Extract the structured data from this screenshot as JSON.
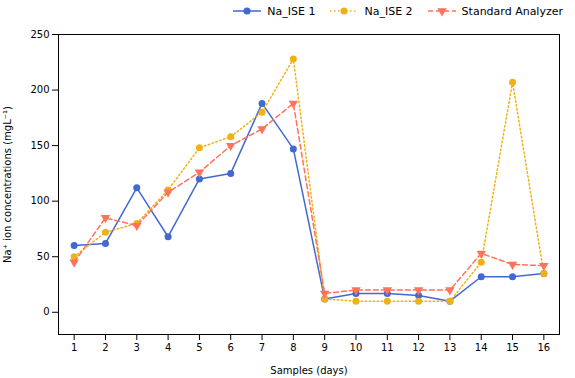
{
  "chart_data": {
    "type": "line",
    "xlabel": "Samples (days)",
    "ylabel": "Na⁺ ion concentrations (mgL⁻¹)",
    "x": [
      1,
      2,
      3,
      4,
      5,
      6,
      7,
      8,
      9,
      10,
      11,
      12,
      13,
      14,
      15,
      16
    ],
    "series": [
      {
        "name": "Na_ISE 1",
        "values": [
          60,
          62,
          112,
          68,
          120,
          125,
          188,
          147,
          12,
          17,
          17,
          15,
          10,
          32,
          32,
          35
        ],
        "line_style": "solid",
        "marker": "circle"
      },
      {
        "name": "Na_ISE 2",
        "values": [
          50,
          72,
          80,
          110,
          148,
          158,
          180,
          228,
          12,
          10,
          10,
          10,
          10,
          45,
          207,
          35
        ],
        "line_style": "dotted",
        "marker": "circle"
      },
      {
        "name": "Standard Analyzer",
        "values": [
          45,
          85,
          78,
          108,
          126,
          150,
          165,
          188,
          17,
          20,
          20,
          20,
          20,
          53,
          43,
          42
        ],
        "line_style": "dashed",
        "marker": "triangle-down"
      }
    ],
    "xlim": [
      0.5,
      16.5
    ],
    "xticks": [
      1,
      2,
      3,
      4,
      5,
      6,
      7,
      8,
      9,
      10,
      11,
      12,
      13,
      14,
      15,
      16
    ],
    "ylim": [
      -20,
      250
    ],
    "yticks": [
      0,
      50,
      100,
      150,
      200,
      250
    ],
    "legend": "upper right",
    "grid": false
  }
}
